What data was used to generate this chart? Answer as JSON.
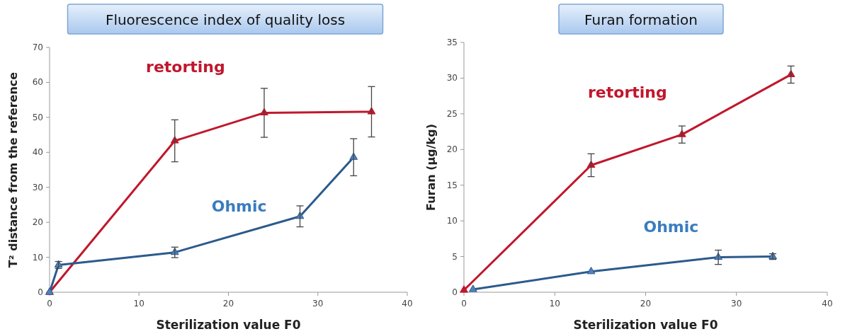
{
  "chart_data": [
    {
      "type": "line",
      "title": "Fluorescence index of quality loss",
      "xlabel": "Sterilization value F0",
      "ylabel": "T² distance from the reference",
      "xlim": [
        0,
        40
      ],
      "xticks": [
        0,
        10,
        20,
        30,
        40
      ],
      "ylim": [
        0,
        70
      ],
      "yticks": [
        0,
        10,
        20,
        30,
        40,
        50,
        60,
        70
      ],
      "grid": false,
      "marker": "triangle",
      "line_style": "solid",
      "series": [
        {
          "name": "retorting",
          "color": "#c0172d",
          "x": [
            0,
            14,
            24,
            36
          ],
          "values": [
            0,
            43.3,
            51.3,
            51.6
          ],
          "errors": [
            null,
            6,
            7,
            7.2
          ]
        },
        {
          "name": "Ohmic",
          "color": "#2c5a8c",
          "x": [
            0,
            1,
            14,
            28,
            34
          ],
          "values": [
            0,
            7.8,
            11.4,
            21.7,
            38.6
          ],
          "errors": [
            null,
            1,
            1.5,
            3,
            5.3
          ]
        }
      ]
    },
    {
      "type": "line",
      "title": "Furan formation",
      "xlabel": "Sterilization value F0",
      "ylabel": "Furan (µg/kg)",
      "xlim": [
        0,
        40
      ],
      "xticks": [
        0,
        10,
        20,
        30,
        40
      ],
      "ylim": [
        0,
        35
      ],
      "yticks": [
        0,
        5,
        10,
        15,
        20,
        25,
        30,
        35
      ],
      "grid": false,
      "marker": "triangle",
      "line_style": "solid",
      "series": [
        {
          "name": "retorting",
          "color": "#c0172d",
          "x": [
            0,
            14,
            24,
            36
          ],
          "values": [
            0.3,
            17.8,
            22.1,
            30.5
          ],
          "errors": [
            null,
            1.6,
            1.2,
            1.2
          ]
        },
        {
          "name": "Ohmic",
          "color": "#2c5a8c",
          "x": [
            1,
            14,
            28,
            34
          ],
          "values": [
            0.4,
            2.9,
            4.9,
            5
          ],
          "errors": [
            null,
            null,
            1,
            0.4
          ]
        }
      ]
    }
  ]
}
